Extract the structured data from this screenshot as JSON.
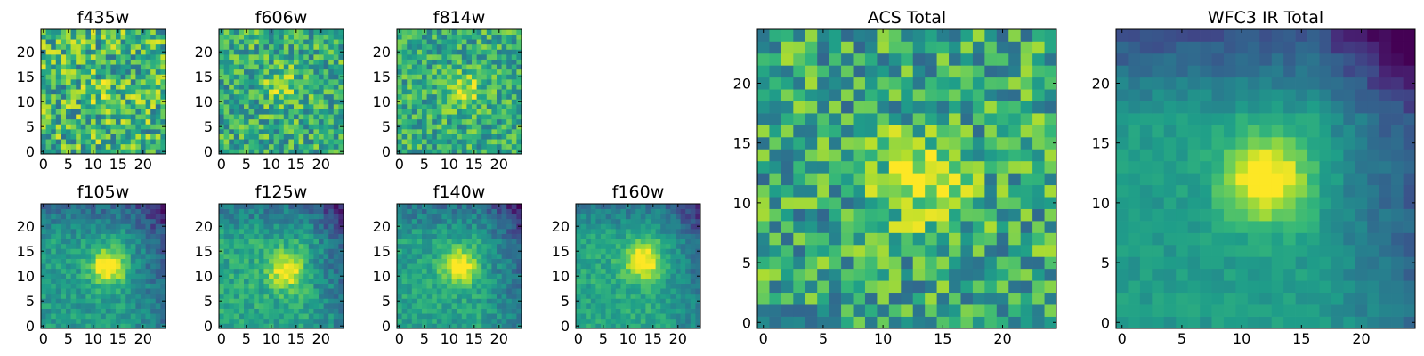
{
  "figure_description_title": "",
  "chart_data": [
    {
      "type": "heatmap",
      "title": "f435w",
      "filter": "f435w",
      "grid": 25,
      "xticks": [
        0,
        5,
        10,
        15,
        20
      ],
      "yticks": [
        0,
        5,
        10,
        15,
        20
      ],
      "xlim": [
        0,
        24
      ],
      "ylim": [
        0,
        24
      ],
      "colormap": "viridis",
      "source_center": [
        13,
        12
      ],
      "source_strength": 0.1,
      "noise": 0.6,
      "base": 0.66,
      "seed": 11,
      "corner_fade": 0.0,
      "edge_fade": 0.0
    },
    {
      "type": "heatmap",
      "title": "f606w",
      "filter": "f606w",
      "grid": 25,
      "xticks": [
        0,
        5,
        10,
        15,
        20
      ],
      "yticks": [
        0,
        5,
        10,
        15,
        20
      ],
      "xlim": [
        0,
        24
      ],
      "ylim": [
        0,
        24
      ],
      "colormap": "viridis",
      "source_center": [
        12,
        13
      ],
      "source_strength": 0.25,
      "noise": 0.5,
      "base": 0.62,
      "seed": 23,
      "corner_fade": 0.0,
      "edge_fade": 0.0
    },
    {
      "type": "heatmap",
      "title": "f814w",
      "filter": "f814w",
      "grid": 25,
      "xticks": [
        0,
        5,
        10,
        15,
        20
      ],
      "yticks": [
        0,
        5,
        10,
        15,
        20
      ],
      "xlim": [
        0,
        24
      ],
      "ylim": [
        0,
        24
      ],
      "colormap": "viridis",
      "source_center": [
        13,
        12
      ],
      "source_strength": 0.3,
      "noise": 0.45,
      "base": 0.62,
      "seed": 37,
      "corner_fade": 0.0,
      "edge_fade": 0.0
    },
    {
      "type": "heatmap",
      "title": "f105w",
      "filter": "f105w",
      "grid": 25,
      "xticks": [
        0,
        5,
        10,
        15,
        20
      ],
      "yticks": [
        0,
        5,
        10,
        15,
        20
      ],
      "xlim": [
        0,
        24
      ],
      "ylim": [
        0,
        24
      ],
      "colormap": "viridis",
      "source_center": [
        13,
        12
      ],
      "source_strength": 0.55,
      "noise": 0.22,
      "base": 0.55,
      "seed": 41,
      "corner_fade": 0.3,
      "edge_fade": 0.2
    },
    {
      "type": "heatmap",
      "title": "f125w",
      "filter": "f125w",
      "grid": 25,
      "xticks": [
        0,
        5,
        10,
        15,
        20
      ],
      "yticks": [
        0,
        5,
        10,
        15,
        20
      ],
      "xlim": [
        0,
        24
      ],
      "ylim": [
        0,
        24
      ],
      "colormap": "viridis",
      "source_center": [
        13,
        11
      ],
      "source_strength": 0.45,
      "noise": 0.25,
      "base": 0.6,
      "seed": 53,
      "corner_fade": 0.3,
      "edge_fade": 0.2
    },
    {
      "type": "heatmap",
      "title": "f140w",
      "filter": "f140w",
      "grid": 25,
      "xticks": [
        0,
        5,
        10,
        15,
        20
      ],
      "yticks": [
        0,
        5,
        10,
        15,
        20
      ],
      "xlim": [
        0,
        24
      ],
      "ylim": [
        0,
        24
      ],
      "colormap": "viridis",
      "source_center": [
        12,
        12
      ],
      "source_strength": 0.5,
      "noise": 0.22,
      "base": 0.58,
      "seed": 67,
      "corner_fade": 0.3,
      "edge_fade": 0.2
    },
    {
      "type": "heatmap",
      "title": "f160w",
      "filter": "f160w",
      "grid": 25,
      "xticks": [
        0,
        5,
        10,
        15,
        20
      ],
      "yticks": [
        0,
        5,
        10,
        15,
        20
      ],
      "xlim": [
        0,
        24
      ],
      "ylim": [
        0,
        24
      ],
      "colormap": "viridis",
      "source_center": [
        13,
        13
      ],
      "source_strength": 0.5,
      "noise": 0.2,
      "base": 0.6,
      "seed": 79,
      "corner_fade": 0.3,
      "edge_fade": 0.2
    },
    {
      "type": "heatmap",
      "title": "ACS Total",
      "filter": "ACS Total",
      "grid": 25,
      "xticks": [
        0,
        5,
        10,
        15,
        20
      ],
      "yticks": [
        0,
        5,
        10,
        15,
        20
      ],
      "xlim": [
        0,
        24
      ],
      "ylim": [
        0,
        24
      ],
      "colormap": "viridis",
      "source_center": [
        13,
        12
      ],
      "source_strength": 0.4,
      "noise": 0.55,
      "base": 0.6,
      "seed": 97,
      "corner_fade": 0.0,
      "edge_fade": 0.0
    },
    {
      "type": "heatmap",
      "title": "WFC3 IR Total",
      "filter": "WFC3 IR Total",
      "grid": 25,
      "xticks": [
        0,
        5,
        10,
        15,
        20
      ],
      "yticks": [
        0,
        5,
        10,
        15,
        20
      ],
      "xlim": [
        0,
        24
      ],
      "ylim": [
        0,
        24
      ],
      "colormap": "viridis",
      "source_center": [
        12,
        12
      ],
      "source_strength": 0.55,
      "noise": 0.12,
      "base": 0.55,
      "seed": 103,
      "corner_fade": 0.35,
      "edge_fade": 0.3
    }
  ]
}
